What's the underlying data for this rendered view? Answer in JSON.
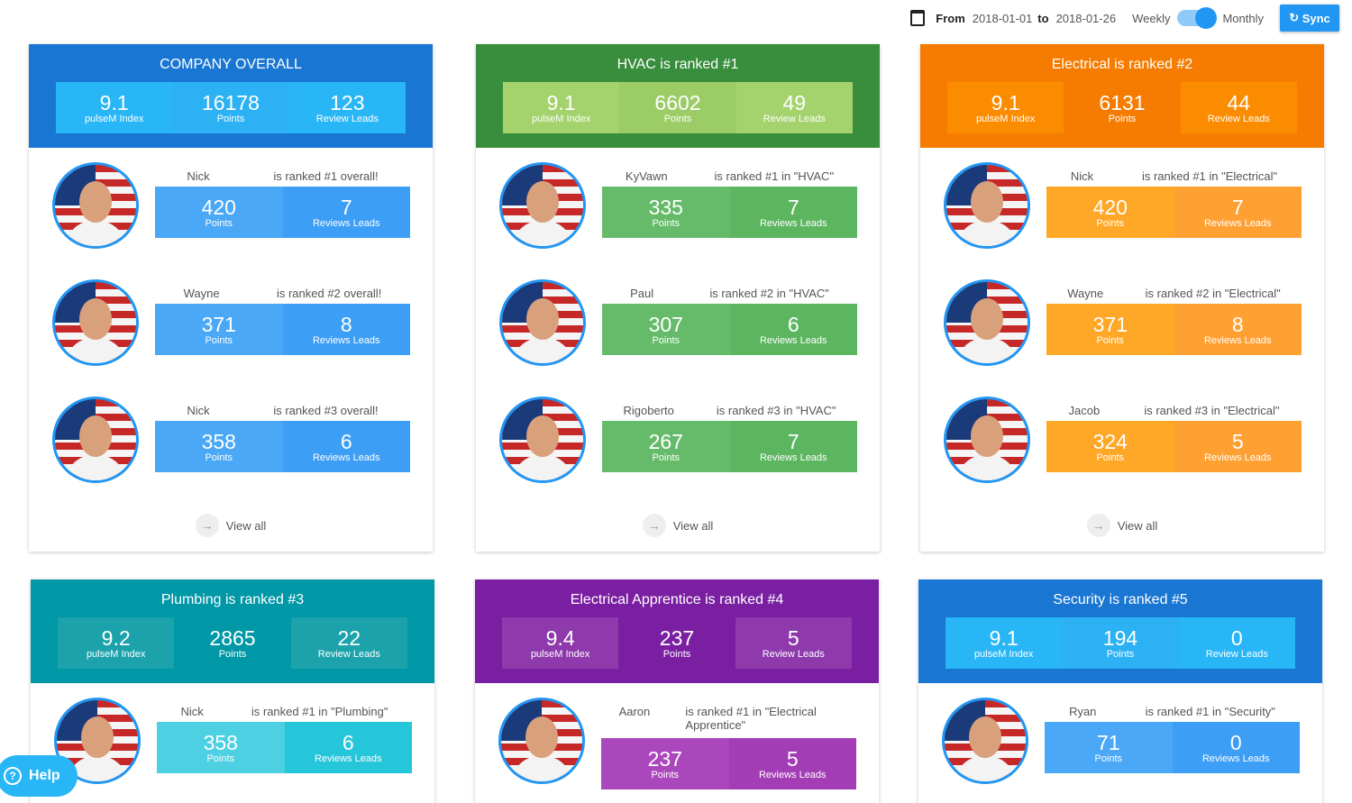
{
  "header": {
    "from_label": "From",
    "from": "2018-01-01",
    "to_label": "to",
    "to": "2018-01-26",
    "weekly": "Weekly",
    "monthly": "Monthly",
    "sync": "Sync"
  },
  "cards": [
    {
      "title": "COMPANY OVERALL",
      "stats": [
        {
          "value": 9.1,
          "label": "pulseM Index"
        },
        {
          "value": 16178,
          "label": "Points"
        },
        {
          "value": 123,
          "label": "Review Leads"
        }
      ],
      "people": [
        {
          "name": "Nick",
          "rank": "is ranked #1 overall!",
          "points": 420,
          "points_label": "Points",
          "leads": 7,
          "leads_label": "Reviews Leads"
        },
        {
          "name": "Wayne",
          "rank": "is ranked #2 overall!",
          "points": 371,
          "points_label": "Points",
          "leads": 8,
          "leads_label": "Reviews Leads"
        },
        {
          "name": "Nick",
          "rank": "is ranked #3 overall!",
          "points": 358,
          "points_label": "Points",
          "leads": 6,
          "leads_label": "Reviews Leads"
        }
      ],
      "view_all": "View all"
    },
    {
      "title": "HVAC is ranked #1",
      "stats": [
        {
          "value": 9.1,
          "label": "pulseM Index"
        },
        {
          "value": 6602,
          "label": "Points"
        },
        {
          "value": 49,
          "label": "Review Leads"
        }
      ],
      "people": [
        {
          "name": "KyVawn",
          "rank": "is ranked #1 in \"HVAC\"",
          "points": 335,
          "points_label": "Points",
          "leads": 7,
          "leads_label": "Reviews Leads"
        },
        {
          "name": "Paul",
          "rank": "is ranked #2 in \"HVAC\"",
          "points": 307,
          "points_label": "Points",
          "leads": 6,
          "leads_label": "Reviews Leads"
        },
        {
          "name": "Rigoberto",
          "rank": "is ranked #3 in \"HVAC\"",
          "points": 267,
          "points_label": "Points",
          "leads": 7,
          "leads_label": "Reviews Leads"
        }
      ],
      "view_all": "View all"
    },
    {
      "title": "Electrical is ranked #2",
      "stats": [
        {
          "value": 9.1,
          "label": "pulseM Index"
        },
        {
          "value": 6131,
          "label": "Points"
        },
        {
          "value": 44,
          "label": "Review Leads"
        }
      ],
      "people": [
        {
          "name": "Nick",
          "rank": "is ranked #1 in \"Electrical\"",
          "points": 420,
          "points_label": "Points",
          "leads": 7,
          "leads_label": "Reviews Leads"
        },
        {
          "name": "Wayne",
          "rank": "is ranked #2 in \"Electrical\"",
          "points": 371,
          "points_label": "Points",
          "leads": 8,
          "leads_label": "Reviews Leads"
        },
        {
          "name": "Jacob",
          "rank": "is ranked #3 in \"Electrical\"",
          "points": 324,
          "points_label": "Points",
          "leads": 5,
          "leads_label": "Reviews Leads"
        }
      ],
      "view_all": "View all"
    },
    {
      "title": "Plumbing is ranked #3",
      "stats": [
        {
          "value": 9.2,
          "label": "pulseM Index"
        },
        {
          "value": 2865,
          "label": "Points"
        },
        {
          "value": 22,
          "label": "Review Leads"
        }
      ],
      "people": [
        {
          "name": "Nick",
          "rank": "is ranked #1 in \"Plumbing\"",
          "points": 358,
          "points_label": "Points",
          "leads": 6,
          "leads_label": "Reviews Leads"
        }
      ]
    },
    {
      "title": "Electrical Apprentice is ranked #4",
      "stats": [
        {
          "value": 9.4,
          "label": "pulseM Index"
        },
        {
          "value": 237,
          "label": "Points"
        },
        {
          "value": 5,
          "label": "Review Leads"
        }
      ],
      "people": [
        {
          "name": "Aaron",
          "rank": "is ranked #1 in \"Electrical Apprentice\"",
          "points": 237,
          "points_label": "Points",
          "leads": 5,
          "leads_label": "Reviews Leads"
        }
      ]
    },
    {
      "title": "Security is ranked #5",
      "stats": [
        {
          "value": 9.1,
          "label": "pulseM Index"
        },
        {
          "value": 194,
          "label": "Points"
        },
        {
          "value": 0,
          "label": "Review Leads"
        }
      ],
      "people": [
        {
          "name": "Ryan",
          "rank": "is ranked #1 in \"Security\"",
          "points": 71,
          "points_label": "Points",
          "leads": 0,
          "leads_label": "Reviews Leads"
        }
      ]
    }
  ],
  "help": "Help"
}
